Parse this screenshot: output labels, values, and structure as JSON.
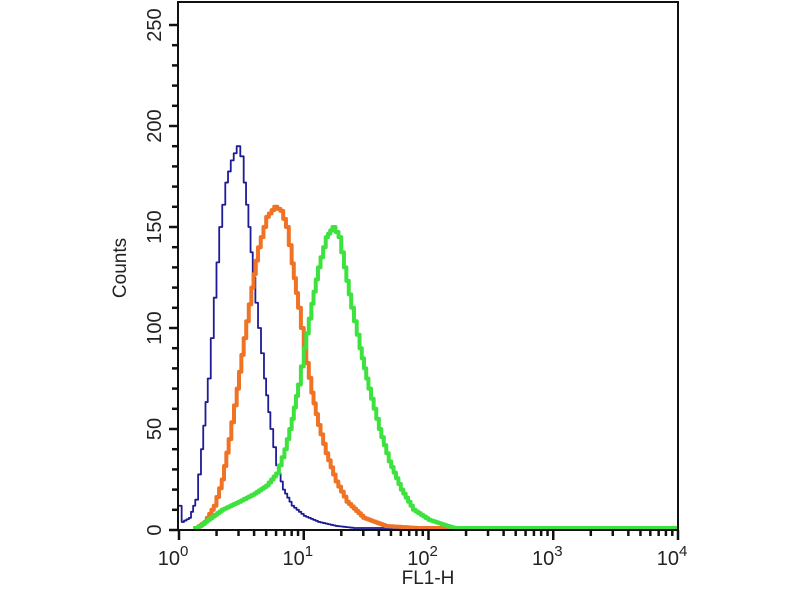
{
  "chart_data": {
    "type": "line",
    "title": "",
    "xlabel": "FL1-H",
    "ylabel": "Counts",
    "xscale": "log",
    "xlim": [
      1,
      10000
    ],
    "ylim": [
      0,
      250
    ],
    "grid": false,
    "x_ticks": [
      {
        "base": "10",
        "exp": "0",
        "value": 1
      },
      {
        "base": "10",
        "exp": "1",
        "value": 10
      },
      {
        "base": "10",
        "exp": "2",
        "value": 100
      },
      {
        "base": "10",
        "exp": "3",
        "value": 1000
      },
      {
        "base": "10",
        "exp": "4",
        "value": 10000
      }
    ],
    "y_ticks": [
      "0",
      "50",
      "100",
      "150",
      "200",
      "250"
    ],
    "series": [
      {
        "color": "#1c1c96",
        "stroke": "thin",
        "points": [
          [
            1,
            12
          ],
          [
            1.05,
            4
          ],
          [
            1.2,
            6
          ],
          [
            1.35,
            15
          ],
          [
            1.5,
            40
          ],
          [
            1.7,
            75
          ],
          [
            1.9,
            115
          ],
          [
            2.1,
            150
          ],
          [
            2.35,
            172
          ],
          [
            2.6,
            183
          ],
          [
            2.9,
            190
          ],
          [
            3.1,
            185
          ],
          [
            3.3,
            172
          ],
          [
            3.6,
            150
          ],
          [
            3.9,
            125
          ],
          [
            4.3,
            100
          ],
          [
            4.8,
            75
          ],
          [
            5.4,
            50
          ],
          [
            6,
            32
          ],
          [
            6.8,
            20
          ],
          [
            8,
            12
          ],
          [
            10,
            7
          ],
          [
            13,
            4
          ],
          [
            18,
            2
          ],
          [
            25,
            1
          ],
          [
            40,
            0
          ],
          [
            10000,
            0
          ]
        ]
      },
      {
        "color": "#f07224",
        "stroke": "thick",
        "points": [
          [
            1.3,
            0
          ],
          [
            1.6,
            4
          ],
          [
            1.9,
            12
          ],
          [
            2.2,
            25
          ],
          [
            2.5,
            45
          ],
          [
            2.9,
            70
          ],
          [
            3.3,
            95
          ],
          [
            3.8,
            120
          ],
          [
            4.3,
            140
          ],
          [
            5,
            155
          ],
          [
            5.8,
            160
          ],
          [
            6.5,
            158
          ],
          [
            7.2,
            150
          ],
          [
            8,
            132
          ],
          [
            9,
            110
          ],
          [
            10,
            90
          ],
          [
            11.5,
            68
          ],
          [
            13,
            52
          ],
          [
            15,
            38
          ],
          [
            18,
            24
          ],
          [
            22,
            14
          ],
          [
            30,
            6
          ],
          [
            45,
            2
          ],
          [
            80,
            1
          ],
          [
            120,
            0
          ],
          [
            10000,
            0
          ]
        ]
      },
      {
        "color": "#3ee23e",
        "stroke": "thick",
        "points": [
          [
            1.3,
            0
          ],
          [
            1.7,
            5
          ],
          [
            2.2,
            10
          ],
          [
            3,
            14
          ],
          [
            4,
            18
          ],
          [
            5,
            22
          ],
          [
            6,
            28
          ],
          [
            7,
            40
          ],
          [
            8,
            55
          ],
          [
            9,
            72
          ],
          [
            10,
            90
          ],
          [
            11.5,
            112
          ],
          [
            13,
            130
          ],
          [
            15,
            145
          ],
          [
            17,
            150
          ],
          [
            19,
            145
          ],
          [
            21,
            130
          ],
          [
            24,
            110
          ],
          [
            28,
            90
          ],
          [
            33,
            70
          ],
          [
            40,
            50
          ],
          [
            48,
            34
          ],
          [
            60,
            20
          ],
          [
            75,
            10
          ],
          [
            100,
            5
          ],
          [
            140,
            2
          ],
          [
            180,
            0
          ],
          [
            10000,
            0
          ]
        ]
      }
    ]
  }
}
